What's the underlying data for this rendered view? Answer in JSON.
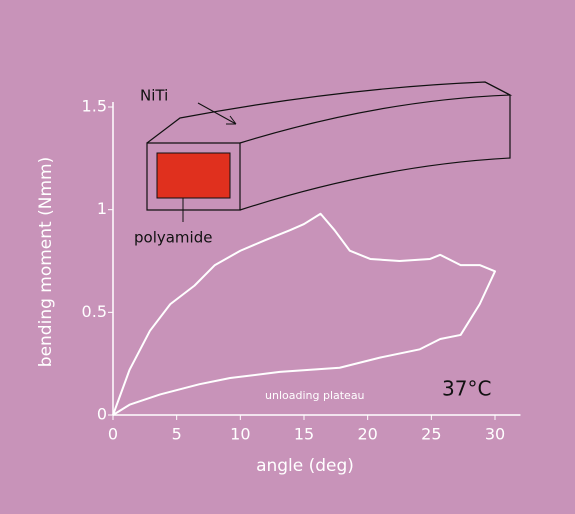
{
  "chart_data": {
    "type": "line",
    "x_label": "angle (deg)",
    "y_label": "bending moment (Nmm)",
    "annotations": {
      "material": "NiTi",
      "core": "polyamide",
      "plateau": "unloading plateau",
      "temperature": "37°C"
    },
    "xlim": [
      0,
      32
    ],
    "ylim": [
      0,
      1.5
    ],
    "xticks": [
      0,
      5,
      10,
      15,
      20,
      25,
      30
    ],
    "yticks": [
      0,
      0.5,
      1,
      1.5
    ],
    "series": [
      {
        "color": "#ffffff",
        "x": [
          0,
          1.3,
          2.9,
          4.5,
          6.4,
          8,
          10,
          11.9,
          13.9,
          15,
          16.3,
          17.4,
          18.6,
          20.2,
          22.5,
          24.9,
          25.7,
          27.3,
          28.8,
          30,
          28.8,
          27.3,
          25.7,
          24.1,
          21,
          17.8,
          13.1,
          9.2,
          6.8,
          3.7,
          1.3,
          0
        ],
        "values": [
          0,
          0.22,
          0.41,
          0.54,
          0.63,
          0.73,
          0.8,
          0.85,
          0.9,
          0.93,
          0.98,
          0.9,
          0.8,
          0.76,
          0.75,
          0.76,
          0.78,
          0.73,
          0.73,
          0.7,
          0.54,
          0.39,
          0.37,
          0.32,
          0.28,
          0.23,
          0.21,
          0.18,
          0.15,
          0.1,
          0.05,
          0
        ]
      }
    ]
  }
}
